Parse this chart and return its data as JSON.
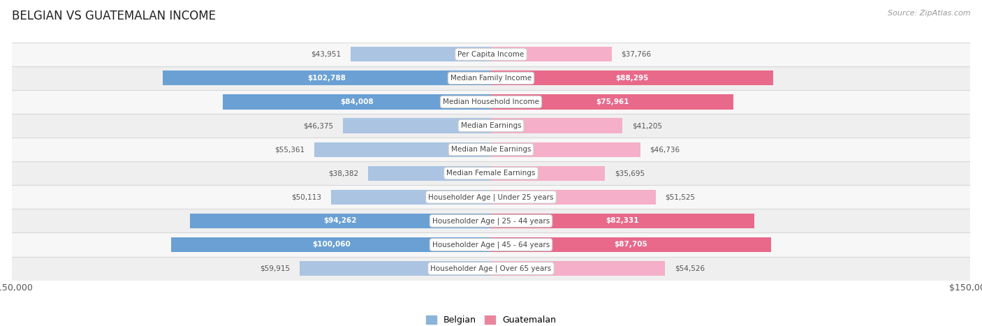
{
  "title": "BELGIAN VS GUATEMALAN INCOME",
  "source": "Source: ZipAtlas.com",
  "categories": [
    "Per Capita Income",
    "Median Family Income",
    "Median Household Income",
    "Median Earnings",
    "Median Male Earnings",
    "Median Female Earnings",
    "Householder Age | Under 25 years",
    "Householder Age | 25 - 44 years",
    "Householder Age | 45 - 64 years",
    "Householder Age | Over 65 years"
  ],
  "belgian_values": [
    43951,
    102788,
    84008,
    46375,
    55361,
    38382,
    50113,
    94262,
    100060,
    59915
  ],
  "guatemalan_values": [
    37766,
    88295,
    75961,
    41205,
    46736,
    35695,
    51525,
    82331,
    87705,
    54526
  ],
  "belgian_labels": [
    "$43,951",
    "$102,788",
    "$84,008",
    "$46,375",
    "$55,361",
    "$38,382",
    "$50,113",
    "$94,262",
    "$100,060",
    "$59,915"
  ],
  "guatemalan_labels": [
    "$37,766",
    "$88,295",
    "$75,961",
    "$41,205",
    "$46,736",
    "$35,695",
    "$51,525",
    "$82,331",
    "$87,705",
    "$54,526"
  ],
  "max_value": 150000,
  "belgian_color_light": "#aac4e2",
  "belgian_color_dark": "#6aa0d4",
  "guatemalan_color_light": "#f5afc8",
  "guatemalan_color_dark": "#e8698a",
  "row_bg_even": "#f7f7f7",
  "row_bg_odd": "#efefef",
  "row_border_color": "#d8d8d8",
  "label_outside_color": "#555555",
  "label_inside_color": "#ffffff",
  "label_threshold": 75000,
  "title_color": "#222222",
  "source_color": "#999999",
  "legend_belgian_color": "#8ab4d8",
  "legend_guatemalan_color": "#e8869e"
}
